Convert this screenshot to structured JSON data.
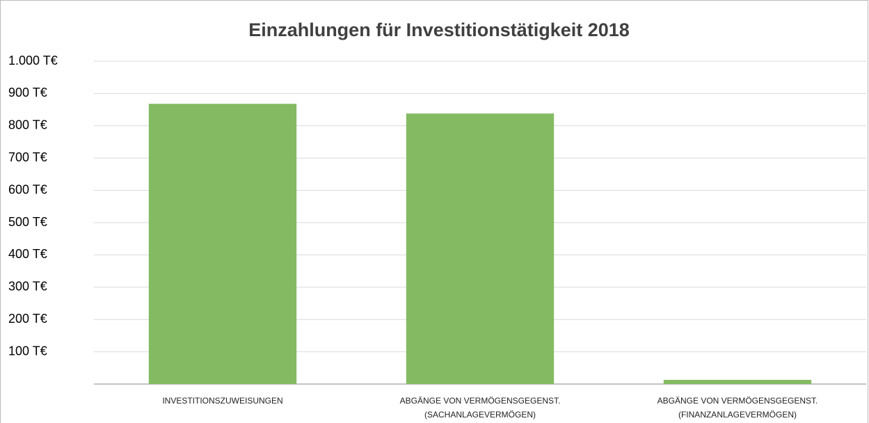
{
  "chart_data": {
    "type": "bar",
    "title": "Einzahlungen für Investitionstätigkeit 2018",
    "categories": [
      "INVESTITIONSZUWEISUNGEN",
      "ABGÄNGE VON VERMÖGENSGEGENST.\n(SACHANLAGEVERMÖGEN)",
      "ABGÄNGE VON VERMÖGENSGEGENST.\n(FINANZANLAGEVERMÖGEN)"
    ],
    "values": [
      868,
      838,
      13
    ],
    "color": "#84bb62",
    "ylim": [
      0,
      1000
    ],
    "yticks": [
      {
        "value": 100,
        "label": "100 T€"
      },
      {
        "value": 200,
        "label": "200 T€"
      },
      {
        "value": 300,
        "label": "300 T€"
      },
      {
        "value": 400,
        "label": "400 T€"
      },
      {
        "value": 500,
        "label": "500 T€"
      },
      {
        "value": 600,
        "label": "600 T€"
      },
      {
        "value": 700,
        "label": "700 T€"
      },
      {
        "value": 800,
        "label": "800 T€"
      },
      {
        "value": 900,
        "label": "900 T€"
      },
      {
        "value": 1000,
        "label": "1.000 T€"
      }
    ],
    "grid": true
  }
}
